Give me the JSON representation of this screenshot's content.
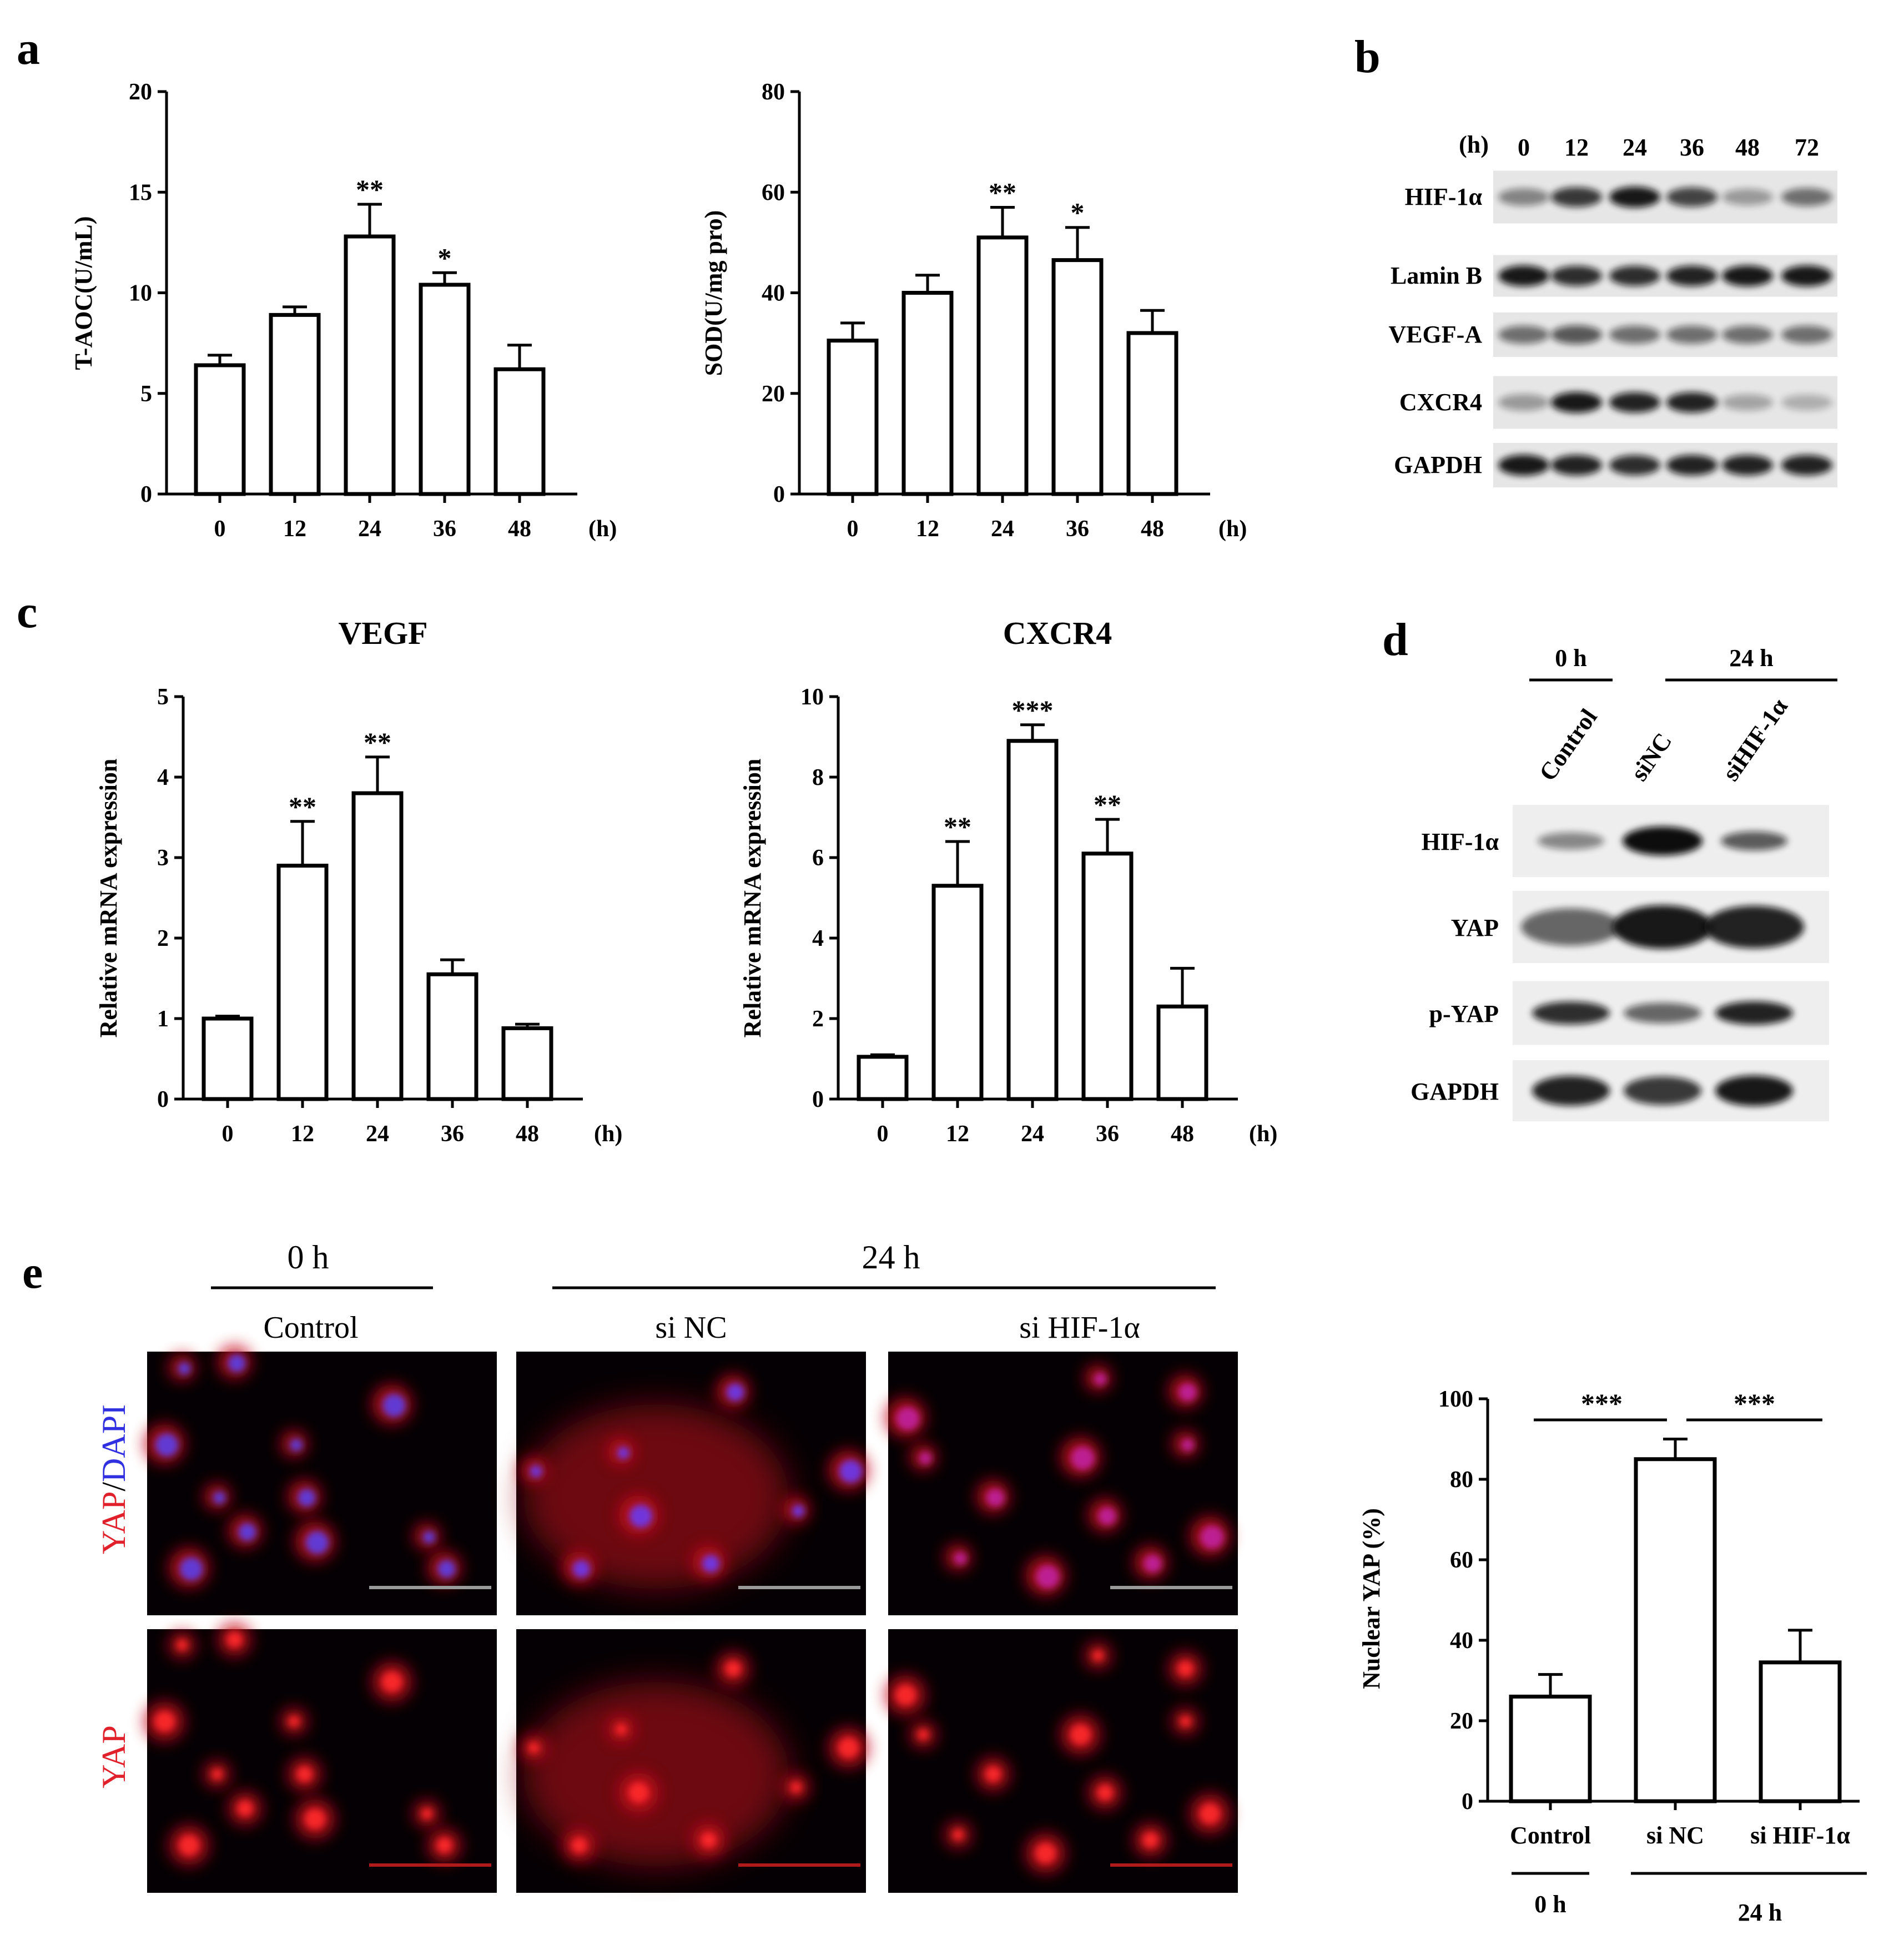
{
  "panels": {
    "a": "a",
    "b": "b",
    "c": "c",
    "d": "d",
    "e": "e"
  },
  "chart_data": [
    {
      "id": "taoc",
      "type": "bar",
      "title": "",
      "ylabel": "T-AOC(U/mL)",
      "xunit": "(h)",
      "categories": [
        "0",
        "12",
        "24",
        "36",
        "48"
      ],
      "values": [
        6.4,
        8.9,
        12.8,
        10.4,
        6.2
      ],
      "errors": [
        0.5,
        0.4,
        1.6,
        0.6,
        1.2
      ],
      "significance": [
        "",
        "",
        "**",
        "*",
        ""
      ],
      "ylim": [
        0,
        20
      ],
      "yticks": [
        0,
        5,
        10,
        15,
        20
      ]
    },
    {
      "id": "sod",
      "type": "bar",
      "title": "",
      "ylabel": "SOD(U/mg pro)",
      "xunit": "(h)",
      "categories": [
        "0",
        "12",
        "24",
        "36",
        "48"
      ],
      "values": [
        30.5,
        40,
        51,
        46.5,
        32
      ],
      "errors": [
        3.5,
        3.5,
        6,
        6.5,
        4.5
      ],
      "significance": [
        "",
        "",
        "**",
        "*",
        ""
      ],
      "ylim": [
        0,
        80
      ],
      "yticks": [
        0,
        20,
        40,
        60,
        80
      ]
    },
    {
      "id": "vegf",
      "type": "bar",
      "title": "VEGF",
      "ylabel": "Relative mRNA expression",
      "xunit": "(h)",
      "categories": [
        "0",
        "12",
        "24",
        "36",
        "48"
      ],
      "values": [
        1,
        2.9,
        3.8,
        1.55,
        0.88
      ],
      "errors": [
        0.03,
        0.55,
        0.45,
        0.18,
        0.05
      ],
      "significance": [
        "",
        "**",
        "**",
        "",
        ""
      ],
      "ylim": [
        0,
        5
      ],
      "yticks": [
        0,
        1,
        2,
        3,
        4,
        5
      ]
    },
    {
      "id": "cxcr4",
      "type": "bar",
      "title": "CXCR4",
      "ylabel": "Relative mRNA expression",
      "xunit": "(h)",
      "categories": [
        "0",
        "12",
        "24",
        "36",
        "48"
      ],
      "values": [
        1.05,
        5.3,
        8.9,
        6.1,
        2.3
      ],
      "errors": [
        0.05,
        1.1,
        0.4,
        0.85,
        0.95
      ],
      "significance": [
        "",
        "**",
        "***",
        "**",
        ""
      ],
      "ylim": [
        0,
        10
      ],
      "yticks": [
        0,
        2,
        4,
        6,
        8,
        10
      ]
    },
    {
      "id": "nuclear",
      "type": "bar",
      "title": "",
      "ylabel": "Nuclear YAP (%)",
      "categories": [
        "Control",
        "si NC",
        "si HIF-1α"
      ],
      "values": [
        26,
        85,
        34.5
      ],
      "errors": [
        5.5,
        5,
        8
      ],
      "brackets": [
        "***",
        "***"
      ],
      "group_labels": [
        "0 h",
        "24 h"
      ],
      "ylim": [
        0,
        100
      ],
      "yticks": [
        0,
        20,
        40,
        60,
        80,
        100
      ]
    }
  ],
  "blot_b": {
    "hour_unit": "(h)",
    "lanes": [
      "0",
      "12",
      "24",
      "36",
      "48",
      "72"
    ],
    "rows": [
      "HIF-1α",
      "Lamin B",
      "VEGF-A",
      "CXCR4",
      "GAPDH"
    ]
  },
  "blot_d": {
    "groups": [
      "0 h",
      "24 h"
    ],
    "lanes": [
      "Control",
      "siNC",
      "siHIF-1α"
    ],
    "rows": [
      "HIF-1α",
      "YAP",
      "p-YAP",
      "GAPDH"
    ]
  },
  "micrographs": {
    "groups": [
      "0 h",
      "24 h"
    ],
    "columns": [
      "Control",
      "si NC",
      "si HIF-1α"
    ],
    "row_labels": {
      "merge_a": "YAP",
      "merge_sep": "/",
      "merge_b": "DAPI",
      "single": "YAP"
    },
    "colors": {
      "yap": "#e0202a",
      "dapi": "#3030e0"
    }
  }
}
